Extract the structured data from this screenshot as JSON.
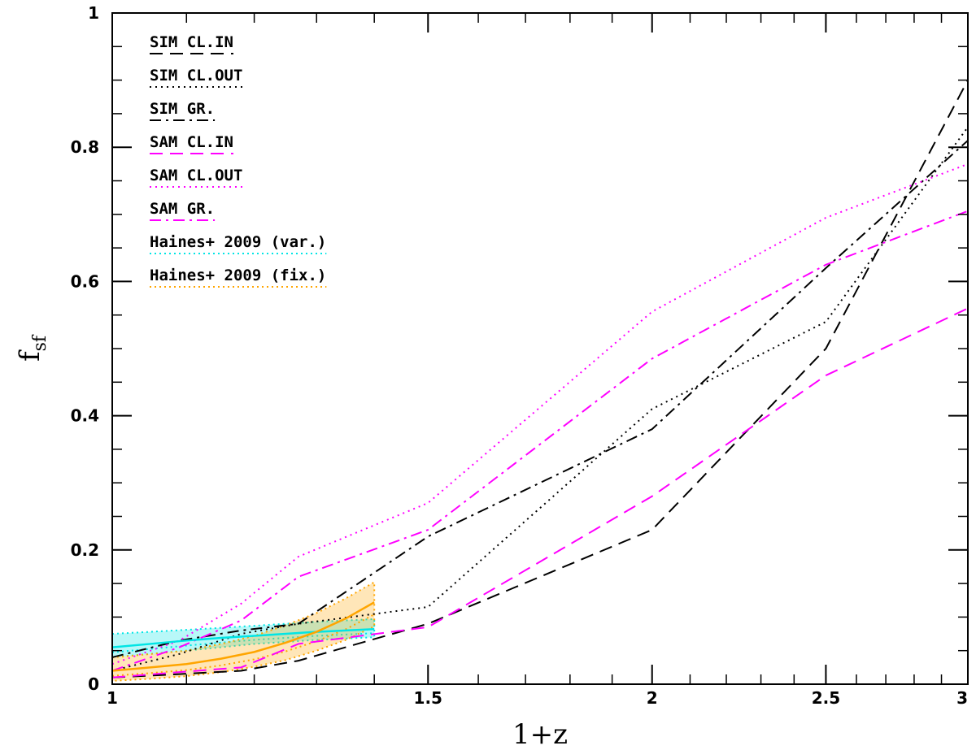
{
  "chart_data": {
    "type": "line",
    "xlabel": "1+z",
    "ylabel": "f_sf",
    "xscale": "log",
    "xlim": [
      1,
      3
    ],
    "ylim": [
      0,
      1
    ],
    "grid": false,
    "legend_position": "top-left",
    "x_ticks": [
      {
        "value": 1,
        "label": "1"
      },
      {
        "value": 1.5,
        "label": "1.5"
      },
      {
        "value": 2,
        "label": "2"
      },
      {
        "value": 2.5,
        "label": "2.5"
      },
      {
        "value": 3,
        "label": "3"
      }
    ],
    "y_ticks": [
      {
        "value": 0,
        "label": "0"
      },
      {
        "value": 0.2,
        "label": "0.2"
      },
      {
        "value": 0.4,
        "label": "0.4"
      },
      {
        "value": 0.6,
        "label": "0.6"
      },
      {
        "value": 0.8,
        "label": "0.8"
      },
      {
        "value": 1,
        "label": "1"
      }
    ],
    "series": [
      {
        "name": "SIM CL.IN",
        "color": "#000000",
        "style": "dashed",
        "x": [
          1.0,
          1.09,
          1.18,
          1.27,
          1.5,
          2.0,
          2.5,
          3.0
        ],
        "y": [
          0.01,
          0.015,
          0.02,
          0.035,
          0.09,
          0.23,
          0.5,
          0.9
        ]
      },
      {
        "name": "SIM CL.OUT",
        "color": "#000000",
        "style": "dotted",
        "x": [
          1.0,
          1.09,
          1.18,
          1.27,
          1.5,
          2.0,
          2.5,
          3.0
        ],
        "y": [
          0.02,
          0.045,
          0.075,
          0.09,
          0.115,
          0.41,
          0.54,
          0.83
        ]
      },
      {
        "name": "SIM GR.",
        "color": "#000000",
        "style": "dashdot",
        "x": [
          1.0,
          1.09,
          1.18,
          1.27,
          1.5,
          2.0,
          2.5,
          3.0
        ],
        "y": [
          0.04,
          0.065,
          0.08,
          0.09,
          0.22,
          0.38,
          0.62,
          0.81
        ]
      },
      {
        "name": "SAM CL.IN",
        "color": "#ff00ff",
        "style": "dashed",
        "x": [
          1.0,
          1.09,
          1.18,
          1.27,
          1.5,
          2.0,
          2.5,
          3.0
        ],
        "y": [
          0.01,
          0.018,
          0.025,
          0.06,
          0.085,
          0.28,
          0.46,
          0.56
        ]
      },
      {
        "name": "SAM CL.OUT",
        "color": "#ff00ff",
        "style": "dotted",
        "x": [
          1.0,
          1.09,
          1.18,
          1.27,
          1.5,
          2.0,
          2.5,
          3.0
        ],
        "y": [
          0.03,
          0.065,
          0.12,
          0.19,
          0.27,
          0.555,
          0.695,
          0.775
        ]
      },
      {
        "name": "SAM GR.",
        "color": "#ff00ff",
        "style": "dashdot",
        "x": [
          1.0,
          1.09,
          1.18,
          1.27,
          1.5,
          2.0,
          2.5,
          3.0
        ],
        "y": [
          0.02,
          0.055,
          0.095,
          0.16,
          0.23,
          0.485,
          0.625,
          0.705
        ]
      },
      {
        "name": "Haines+ 2009 (var.)",
        "color": "#00e5e5",
        "style": "solid",
        "band": true,
        "band_color": "#00e5e5",
        "x": [
          1.0,
          1.05,
          1.1,
          1.15,
          1.2,
          1.25,
          1.3,
          1.35,
          1.4
        ],
        "y": [
          0.055,
          0.06,
          0.065,
          0.069,
          0.072,
          0.075,
          0.078,
          0.08,
          0.082
        ],
        "y_low": [
          0.04,
          0.045,
          0.05,
          0.055,
          0.06,
          0.063,
          0.066,
          0.068,
          0.07
        ],
        "y_high": [
          0.075,
          0.078,
          0.081,
          0.084,
          0.087,
          0.09,
          0.093,
          0.095,
          0.097
        ]
      },
      {
        "name": "Haines+ 2009 (fix.)",
        "color": "#ffa500",
        "style": "solid",
        "band": true,
        "band_color": "#ffa500",
        "x": [
          1.0,
          1.05,
          1.1,
          1.15,
          1.2,
          1.25,
          1.3,
          1.35,
          1.4
        ],
        "y": [
          0.02,
          0.025,
          0.03,
          0.038,
          0.048,
          0.062,
          0.078,
          0.098,
          0.122
        ],
        "y_low": [
          0.005,
          0.008,
          0.012,
          0.018,
          0.026,
          0.036,
          0.05,
          0.066,
          0.086
        ],
        "y_high": [
          0.04,
          0.045,
          0.05,
          0.06,
          0.072,
          0.088,
          0.106,
          0.128,
          0.152
        ]
      }
    ]
  }
}
